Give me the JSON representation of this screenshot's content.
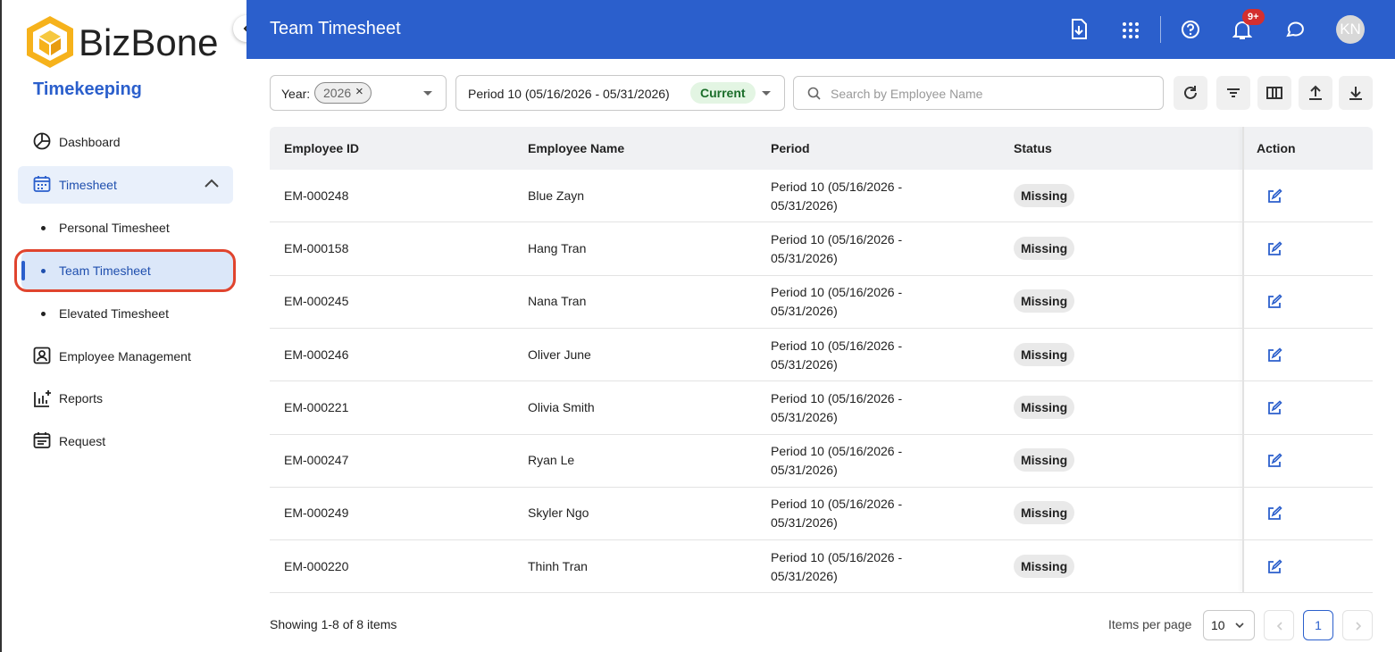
{
  "sidebar": {
    "brand": "BizBone",
    "module": "Timekeeping",
    "nav": [
      {
        "label": "Dashboard"
      },
      {
        "label": "Timesheet"
      },
      {
        "label": "Personal Timesheet"
      },
      {
        "label": "Team Timesheet"
      },
      {
        "label": "Elevated Timesheet"
      },
      {
        "label": "Employee Management"
      },
      {
        "label": "Reports"
      },
      {
        "label": "Request"
      }
    ]
  },
  "header": {
    "title": "Team Timesheet",
    "notification_badge": "9+",
    "avatar": "KN"
  },
  "filters": {
    "year_label": "Year:",
    "year": "2026",
    "period": "Period 10 (05/16/2026 - 05/31/2026)",
    "period_tag": "Current",
    "search_placeholder": "Search by Employee Name"
  },
  "table": {
    "columns": [
      "Employee ID",
      "Employee Name",
      "Period",
      "Status",
      "Action"
    ],
    "rows": [
      [
        "EM-000248",
        "Blue Zayn",
        "Period 10 (05/16/2026 - 05/31/2026)",
        "Missing"
      ],
      [
        "EM-000158",
        "Hang Tran",
        "Period 10 (05/16/2026 - 05/31/2026)",
        "Missing"
      ],
      [
        "EM-000245",
        "Nana Tran",
        "Period 10 (05/16/2026 - 05/31/2026)",
        "Missing"
      ],
      [
        "EM-000246",
        "Oliver June",
        "Period 10 (05/16/2026 - 05/31/2026)",
        "Missing"
      ],
      [
        "EM-000221",
        "Olivia Smith",
        "Period 10 (05/16/2026 - 05/31/2026)",
        "Missing"
      ],
      [
        "EM-000247",
        "Ryan Le",
        "Period 10 (05/16/2026 - 05/31/2026)",
        "Missing"
      ],
      [
        "EM-000249",
        "Skyler Ngo",
        "Period 10 (05/16/2026 - 05/31/2026)",
        "Missing"
      ],
      [
        "EM-000220",
        "Thinh Tran",
        "Period 10 (05/16/2026 - 05/31/2026)",
        "Missing"
      ]
    ]
  },
  "footer": {
    "summary": "Showing 1-8 of 8 items",
    "per_page_label": "Items per page",
    "per_page": 10,
    "page": 1
  }
}
